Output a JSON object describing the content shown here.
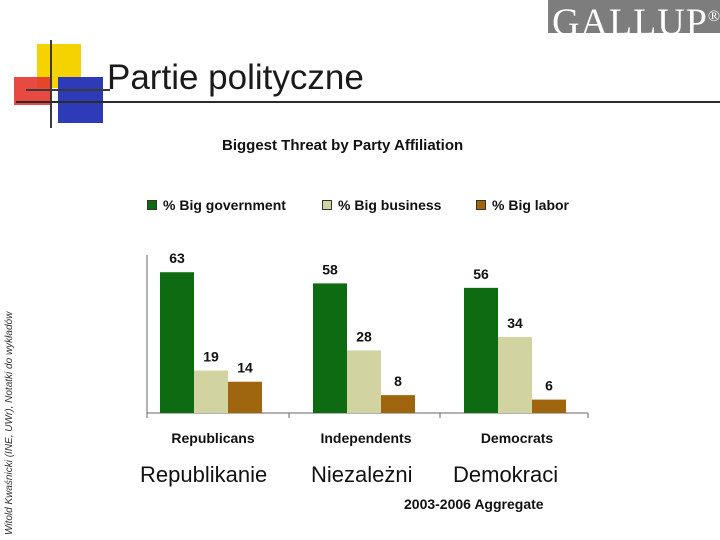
{
  "slide": {
    "title": "Partie polityczne",
    "side_note": "Witold Kwaśnicki (INE, UWr), Notatki do wykładów",
    "logo_text": "GALLUP",
    "logo_mark": "®"
  },
  "polish_labels": [
    "Republikanie",
    "Niezależni",
    "Demokraci"
  ],
  "chart_data": {
    "type": "bar",
    "title": "Biggest Threat by Party Affiliation",
    "subtitle": "2003-2006 Aggregate",
    "categories": [
      "Republicans",
      "Independents",
      "Democrats"
    ],
    "series": [
      {
        "name": "% Big government",
        "values": [
          63,
          58,
          56
        ],
        "color": "#0f6b12"
      },
      {
        "name": "% Big business",
        "values": [
          19,
          28,
          34
        ],
        "color": "#d1d3a0"
      },
      {
        "name": "% Big labor",
        "values": [
          14,
          8,
          6
        ],
        "color": "#a0660f"
      }
    ],
    "legend_position": "top",
    "grid": false,
    "ylim": [
      0,
      70
    ]
  },
  "colors": {
    "deco_yellow": "#f5d300",
    "deco_red": "#e5352b",
    "deco_blue": "#2d3bb8",
    "deco_line": "#3a3a3a"
  }
}
